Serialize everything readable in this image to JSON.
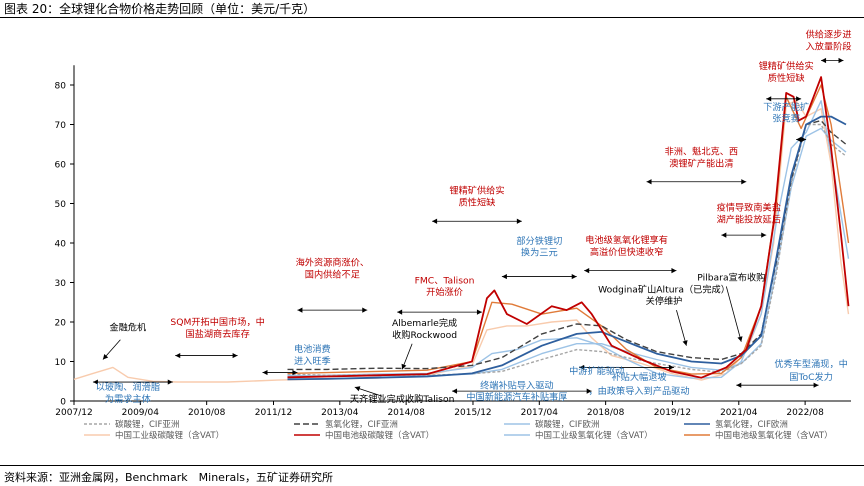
{
  "title": "图表 20：全球锂化合物价格走势回顾（单位：美元/千克）",
  "source": "资料来源：亚洲金属网，Benchmark　Minerals，五矿证券研究所",
  "chart_data": {
    "type": "line",
    "title": "图表 20：全球锂化合物价格走势回顾（单位：美元/千克）",
    "xlabel": "",
    "ylabel": "",
    "ylim": [
      0,
      85
    ],
    "yticks": [
      "0",
      "10",
      "20",
      "30",
      "40",
      "50",
      "60",
      "70",
      "80"
    ],
    "xticks": [
      {
        "label": "2007/12",
        "t": 2007.92
      },
      {
        "label": "2009/04",
        "t": 2009.25
      },
      {
        "label": "2010/08",
        "t": 2010.58
      },
      {
        "label": "2011/12",
        "t": 2011.92
      },
      {
        "label": "2013/04",
        "t": 2013.25
      },
      {
        "label": "2014/08",
        "t": 2014.58
      },
      {
        "label": "2015/12",
        "t": 2015.92
      },
      {
        "label": "2017/04",
        "t": 2017.25
      },
      {
        "label": "2018/08",
        "t": 2018.58
      },
      {
        "label": "2019/12",
        "t": 2019.92
      },
      {
        "label": "2021/04",
        "t": 2021.25
      },
      {
        "label": "2022/08",
        "t": 2022.58
      }
    ],
    "x_range": [
      2007.92,
      2023.5
    ],
    "series": [
      {
        "name": "碳酸锂，CIF亚洲",
        "color": "#a6a6a6",
        "dash": "3,2",
        "points": [
          [
            2012.2,
            6.8
          ],
          [
            2013.0,
            6.5
          ],
          [
            2014.0,
            6.6
          ],
          [
            2015.0,
            6.5
          ],
          [
            2015.9,
            6.9
          ],
          [
            2016.5,
            7.5
          ],
          [
            2017.3,
            10.5
          ],
          [
            2018.0,
            13.0
          ],
          [
            2018.5,
            12.5
          ],
          [
            2019.0,
            11.0
          ],
          [
            2019.6,
            9.5
          ],
          [
            2020.3,
            8.0
          ],
          [
            2020.9,
            7.3
          ],
          [
            2021.3,
            9.5
          ],
          [
            2021.7,
            14.0
          ],
          [
            2022.0,
            32.0
          ],
          [
            2022.3,
            55.0
          ],
          [
            2022.6,
            70.0
          ],
          [
            2022.9,
            70.0
          ],
          [
            2023.1,
            65.0
          ],
          [
            2023.4,
            62.0
          ]
        ]
      },
      {
        "name": "氢氧化锂，CIF亚洲",
        "color": "#404040",
        "dash": "6,3",
        "points": [
          [
            2012.2,
            8.0
          ],
          [
            2013.0,
            8.0
          ],
          [
            2014.0,
            8.3
          ],
          [
            2015.0,
            8.2
          ],
          [
            2015.9,
            9.0
          ],
          [
            2016.5,
            11.0
          ],
          [
            2017.3,
            17.0
          ],
          [
            2018.0,
            19.5
          ],
          [
            2018.5,
            19.0
          ],
          [
            2019.0,
            15.5
          ],
          [
            2019.6,
            12.5
          ],
          [
            2020.3,
            11.0
          ],
          [
            2020.9,
            10.5
          ],
          [
            2021.3,
            12.0
          ],
          [
            2021.7,
            17.0
          ],
          [
            2022.0,
            35.0
          ],
          [
            2022.3,
            56.0
          ],
          [
            2022.6,
            70.0
          ],
          [
            2022.9,
            71.0
          ],
          [
            2023.1,
            68.0
          ],
          [
            2023.4,
            65.0
          ]
        ]
      },
      {
        "name": "碳酸锂，CIF欧洲",
        "color": "#9dc3e6",
        "dash": "",
        "points": [
          [
            2012.2,
            6.5
          ],
          [
            2013.0,
            6.3
          ],
          [
            2014.0,
            6.4
          ],
          [
            2015.0,
            6.4
          ],
          [
            2015.9,
            6.8
          ],
          [
            2016.5,
            8.0
          ],
          [
            2017.3,
            12.0
          ],
          [
            2018.0,
            14.5
          ],
          [
            2018.5,
            14.5
          ],
          [
            2019.0,
            12.5
          ],
          [
            2019.6,
            10.5
          ],
          [
            2020.3,
            8.5
          ],
          [
            2020.9,
            7.8
          ],
          [
            2021.3,
            9.5
          ],
          [
            2021.7,
            14.5
          ],
          [
            2022.0,
            33.0
          ],
          [
            2022.3,
            54.0
          ],
          [
            2022.6,
            67.0
          ],
          [
            2022.9,
            69.0
          ],
          [
            2023.1,
            66.0
          ],
          [
            2023.4,
            63.0
          ]
        ]
      },
      {
        "name": "氢氧化锂，CIF欧洲",
        "color": "#2e5f9e",
        "dash": "",
        "points": [
          [
            2012.2,
            5.5
          ],
          [
            2013.0,
            5.6
          ],
          [
            2014.0,
            5.9
          ],
          [
            2015.0,
            6.2
          ],
          [
            2015.9,
            7.0
          ],
          [
            2016.5,
            9.0
          ],
          [
            2017.3,
            14.0
          ],
          [
            2018.0,
            17.0
          ],
          [
            2018.5,
            17.5
          ],
          [
            2019.0,
            15.0
          ],
          [
            2019.6,
            12.0
          ],
          [
            2020.3,
            10.0
          ],
          [
            2020.9,
            9.5
          ],
          [
            2021.3,
            11.5
          ],
          [
            2021.7,
            16.5
          ],
          [
            2022.0,
            36.0
          ],
          [
            2022.3,
            57.0
          ],
          [
            2022.6,
            70.0
          ],
          [
            2022.9,
            72.0
          ],
          [
            2023.1,
            72.0
          ],
          [
            2023.4,
            70.0
          ]
        ]
      },
      {
        "name": "中国工业级碳酸锂（含VAT）",
        "color": "#f8cbad",
        "dash": "",
        "points": [
          [
            2007.92,
            5.5
          ],
          [
            2008.3,
            7.0
          ],
          [
            2008.7,
            8.5
          ],
          [
            2009.0,
            6.0
          ],
          [
            2009.5,
            5.0
          ],
          [
            2010.0,
            4.8
          ],
          [
            2011.0,
            4.8
          ],
          [
            2012.0,
            5.3
          ],
          [
            2013.0,
            5.6
          ],
          [
            2014.0,
            5.8
          ],
          [
            2015.0,
            6.5
          ],
          [
            2015.9,
            9.0
          ],
          [
            2016.2,
            18.0
          ],
          [
            2016.6,
            19.0
          ],
          [
            2017.0,
            19.0
          ],
          [
            2017.5,
            20.0
          ],
          [
            2018.0,
            20.5
          ],
          [
            2018.3,
            16.0
          ],
          [
            2018.7,
            11.5
          ],
          [
            2019.3,
            9.5
          ],
          [
            2019.9,
            7.0
          ],
          [
            2020.5,
            5.3
          ],
          [
            2021.0,
            7.0
          ],
          [
            2021.4,
            12.5
          ],
          [
            2021.7,
            22.0
          ],
          [
            2021.95,
            40.0
          ],
          [
            2022.2,
            75.0
          ],
          [
            2022.4,
            76.0
          ],
          [
            2022.6,
            72.0
          ],
          [
            2022.9,
            74.0
          ],
          [
            2023.1,
            60.0
          ],
          [
            2023.3,
            35.0
          ],
          [
            2023.45,
            22.0
          ]
        ]
      },
      {
        "name": "中国电池级碳酸锂（含VAT）",
        "color": "#c00000",
        "dash": "",
        "points": [
          [
            2012.2,
            6.0
          ],
          [
            2013.0,
            6.2
          ],
          [
            2014.0,
            6.5
          ],
          [
            2015.0,
            6.8
          ],
          [
            2015.9,
            10.0
          ],
          [
            2016.2,
            26.0
          ],
          [
            2016.35,
            28.0
          ],
          [
            2016.6,
            22.0
          ],
          [
            2017.0,
            19.5
          ],
          [
            2017.5,
            24.0
          ],
          [
            2017.8,
            23.0
          ],
          [
            2018.1,
            25.0
          ],
          [
            2018.3,
            22.0
          ],
          [
            2018.7,
            14.0
          ],
          [
            2019.3,
            10.5
          ],
          [
            2019.9,
            7.5
          ],
          [
            2020.5,
            5.9
          ],
          [
            2021.0,
            8.5
          ],
          [
            2021.4,
            13.0
          ],
          [
            2021.7,
            24.0
          ],
          [
            2021.95,
            45.0
          ],
          [
            2022.2,
            78.0
          ],
          [
            2022.35,
            77.0
          ],
          [
            2022.45,
            71.0
          ],
          [
            2022.6,
            72.0
          ],
          [
            2022.9,
            82.0
          ],
          [
            2023.1,
            64.0
          ],
          [
            2023.3,
            42.0
          ],
          [
            2023.45,
            24.0
          ]
        ]
      },
      {
        "name": "中国工业级氢氧化锂（含VAT）",
        "color": "#9dc3e6",
        "dash": "",
        "points": [
          [
            2012.2,
            6.3
          ],
          [
            2013.0,
            6.5
          ],
          [
            2014.0,
            6.8
          ],
          [
            2015.0,
            7.0
          ],
          [
            2015.9,
            8.5
          ],
          [
            2016.3,
            12.0
          ],
          [
            2016.8,
            13.0
          ],
          [
            2017.3,
            15.5
          ],
          [
            2018.0,
            16.0
          ],
          [
            2018.5,
            14.0
          ],
          [
            2019.0,
            10.5
          ],
          [
            2019.6,
            7.0
          ],
          [
            2020.3,
            5.8
          ],
          [
            2020.9,
            6.0
          ],
          [
            2021.3,
            10.0
          ],
          [
            2021.7,
            22.0
          ],
          [
            2022.0,
            45.0
          ],
          [
            2022.3,
            64.0
          ],
          [
            2022.6,
            68.0
          ],
          [
            2022.9,
            76.0
          ],
          [
            2023.1,
            62.0
          ],
          [
            2023.45,
            36.0
          ]
        ]
      },
      {
        "name": "中国电池级氢氧化锂（含VAT）",
        "color": "#e07b39",
        "dash": "",
        "points": [
          [
            2012.2,
            7.0
          ],
          [
            2013.0,
            7.2
          ],
          [
            2014.0,
            7.5
          ],
          [
            2015.0,
            7.8
          ],
          [
            2015.9,
            10.0
          ],
          [
            2016.3,
            25.0
          ],
          [
            2016.7,
            24.5
          ],
          [
            2017.3,
            22.0
          ],
          [
            2018.0,
            23.5
          ],
          [
            2018.5,
            19.0
          ],
          [
            2019.0,
            13.0
          ],
          [
            2019.6,
            8.5
          ],
          [
            2020.3,
            6.8
          ],
          [
            2020.9,
            7.0
          ],
          [
            2021.3,
            11.0
          ],
          [
            2021.7,
            24.0
          ],
          [
            2022.0,
            50.0
          ],
          [
            2022.2,
            77.0
          ],
          [
            2022.5,
            69.0
          ],
          [
            2022.9,
            80.0
          ],
          [
            2023.1,
            70.0
          ],
          [
            2023.45,
            40.0
          ]
        ]
      }
    ],
    "annotations": [
      {
        "text": "金融危机",
        "color": "#000000",
        "t": 2009.0,
        "y": 17.8
      },
      {
        "text": "以玻陶、润滑脂",
        "color": "#2e75b6",
        "t": 2009.0,
        "y": 2.8
      },
      {
        "text": "为需求主体",
        "color": "#2e75b6",
        "t": 2009.0,
        "y": -0.2
      },
      {
        "text": "SQM开拓中国市场，中",
        "color": "#c00000",
        "t": 2010.8,
        "y": 19.2
      },
      {
        "text": "国盐湖商去库存",
        "color": "#c00000",
        "t": 2010.8,
        "y": 16.2
      },
      {
        "text": "电池消费",
        "color": "#2e75b6",
        "t": 2012.7,
        "y": 12.4
      },
      {
        "text": "进入旺季",
        "color": "#2e75b6",
        "t": 2012.7,
        "y": 9.4
      },
      {
        "text": "海外资源商涨价、",
        "color": "#c00000",
        "t": 2013.1,
        "y": 34.3
      },
      {
        "text": "国内供给不足",
        "color": "#c00000",
        "t": 2013.1,
        "y": 31.3
      },
      {
        "text": "Albemarle完成",
        "color": "#000000",
        "t": 2014.95,
        "y": 19.0
      },
      {
        "text": "收购Rockwood",
        "color": "#000000",
        "t": 2014.95,
        "y": 16.0
      },
      {
        "text": "FMC、Talison",
        "color": "#c00000",
        "t": 2015.35,
        "y": 29.8
      },
      {
        "text": "开始涨价",
        "color": "#c00000",
        "t": 2015.35,
        "y": 26.8
      },
      {
        "text": "天齐锂业完成收购Talison",
        "color": "#000000",
        "t": 2014.5,
        "y": -0.2
      },
      {
        "text": "锂精矿供给实",
        "color": "#c00000",
        "t": 2016.0,
        "y": 52.5
      },
      {
        "text": "质性短缺",
        "color": "#c00000",
        "t": 2016.0,
        "y": 49.5
      },
      {
        "text": "部分铁锂切",
        "color": "#2e75b6",
        "t": 2017.25,
        "y": 39.8
      },
      {
        "text": "换为三元",
        "color": "#2e75b6",
        "t": 2017.25,
        "y": 36.8
      },
      {
        "text": "终端补贴导入驱动",
        "color": "#2e75b6",
        "t": 2016.8,
        "y": 3.2
      },
      {
        "text": "中国新能源汽车补贴事厚",
        "color": "#2e75b6",
        "t": 2016.8,
        "y": 0.2
      },
      {
        "text": "电池级氢氧化锂享有",
        "color": "#c00000",
        "t": 2019.0,
        "y": 40.0
      },
      {
        "text": "高溢价但快速收窄",
        "color": "#c00000",
        "t": 2019.0,
        "y": 37.0
      },
      {
        "text": "中游扩能驱动",
        "color": "#2e75b6",
        "t": 2018.4,
        "y": 6.8
      },
      {
        "text": "Wodgina矿山Altura（已完成）",
        "color": "#000000",
        "t": 2019.75,
        "y": 27.5
      },
      {
        "text": "关停维护",
        "color": "#000000",
        "t": 2019.75,
        "y": 24.5
      },
      {
        "text": "补贴大幅退坡",
        "color": "#2e75b6",
        "t": 2019.25,
        "y": 5.3
      },
      {
        "text": "，由政策导入到产品驱动",
        "color": "#2e75b6",
        "t": 2019.25,
        "y": 1.8
      },
      {
        "text": "Pilbara宣布收购",
        "color": "#000000",
        "t": 2021.1,
        "y": 30.5
      },
      {
        "text": "非洲、魁北克、西",
        "color": "#c00000",
        "t": 2020.5,
        "y": 62.4
      },
      {
        "text": "澳锂矿产能出清",
        "color": "#c00000",
        "t": 2020.5,
        "y": 59.4
      },
      {
        "text": "疫情导致南美盐",
        "color": "#c00000",
        "t": 2021.45,
        "y": 48.2
      },
      {
        "text": "湖产能投放延后",
        "color": "#c00000",
        "t": 2021.45,
        "y": 45.2
      },
      {
        "text": "锂精矿供给实",
        "color": "#c00000",
        "t": 2022.2,
        "y": 84.0
      },
      {
        "text": "质性短缺",
        "color": "#c00000",
        "t": 2022.2,
        "y": 81.0
      },
      {
        "text": "供给逐步进",
        "color": "#c00000",
        "t": 2023.05,
        "y": 92.0
      },
      {
        "text": "入放量阶段",
        "color": "#c00000",
        "t": 2023.05,
        "y": 89.0
      },
      {
        "text": "下游产能扩",
        "color": "#2e75b6",
        "t": 2022.2,
        "y": 73.7
      },
      {
        "text": "张竞赛",
        "color": "#2e75b6",
        "t": 2022.2,
        "y": 70.7
      },
      {
        "text": "优秀车型涌现，中",
        "color": "#2e75b6",
        "t": 2022.7,
        "y": 8.6
      },
      {
        "text": "国ToC发力",
        "color": "#2e75b6",
        "t": 2022.7,
        "y": 5.3
      }
    ]
  }
}
